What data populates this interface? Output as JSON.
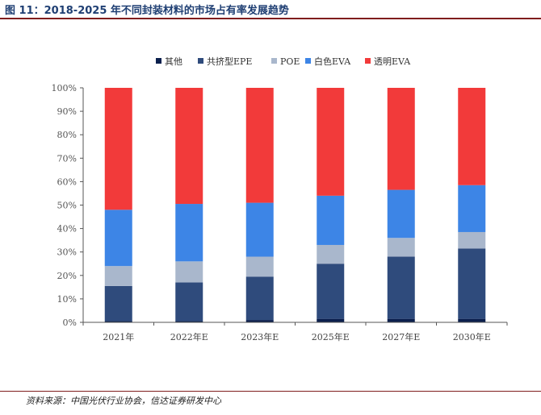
{
  "figure": {
    "title": "图 11：2018-2025 年不同封装材料的市场占有率发展趋势",
    "source": "资料来源：中国光伏行业协会，信达证券研发中心"
  },
  "colors": {
    "other": "#0b1f4d",
    "epe": "#2f4b7c",
    "poe": "#a9b7cc",
    "white_eva": "#3d85e6",
    "clear_eva": "#f23a3a"
  },
  "chart_data": {
    "type": "bar",
    "stacked": true,
    "categories": [
      "2021年",
      "2022年E",
      "2023年E",
      "2025年E",
      "2027年E",
      "2030年E"
    ],
    "series": [
      {
        "name": "其他",
        "color": "#0b1f4d",
        "values": [
          0.5,
          0.5,
          1.0,
          1.5,
          1.5,
          1.5
        ]
      },
      {
        "name": "共挤型EPE",
        "color": "#2f4b7c",
        "values": [
          15.0,
          16.5,
          18.5,
          23.5,
          26.5,
          30.0
        ]
      },
      {
        "name": "POE",
        "color": "#a9b7cc",
        "values": [
          8.5,
          9.0,
          8.5,
          8.0,
          8.0,
          7.0
        ]
      },
      {
        "name": "白色EVA",
        "color": "#3d85e6",
        "values": [
          24.0,
          24.5,
          23.0,
          21.0,
          20.5,
          20.0
        ]
      },
      {
        "name": "透明EVA",
        "color": "#f23a3a",
        "values": [
          52.0,
          49.5,
          49.0,
          46.0,
          43.5,
          41.5
        ]
      }
    ],
    "y_ticks": [
      "0%",
      "10%",
      "20%",
      "30%",
      "40%",
      "50%",
      "60%",
      "70%",
      "80%",
      "90%",
      "100%"
    ],
    "ylim": [
      0,
      100
    ],
    "grid": false,
    "legend_position": "top-center"
  }
}
